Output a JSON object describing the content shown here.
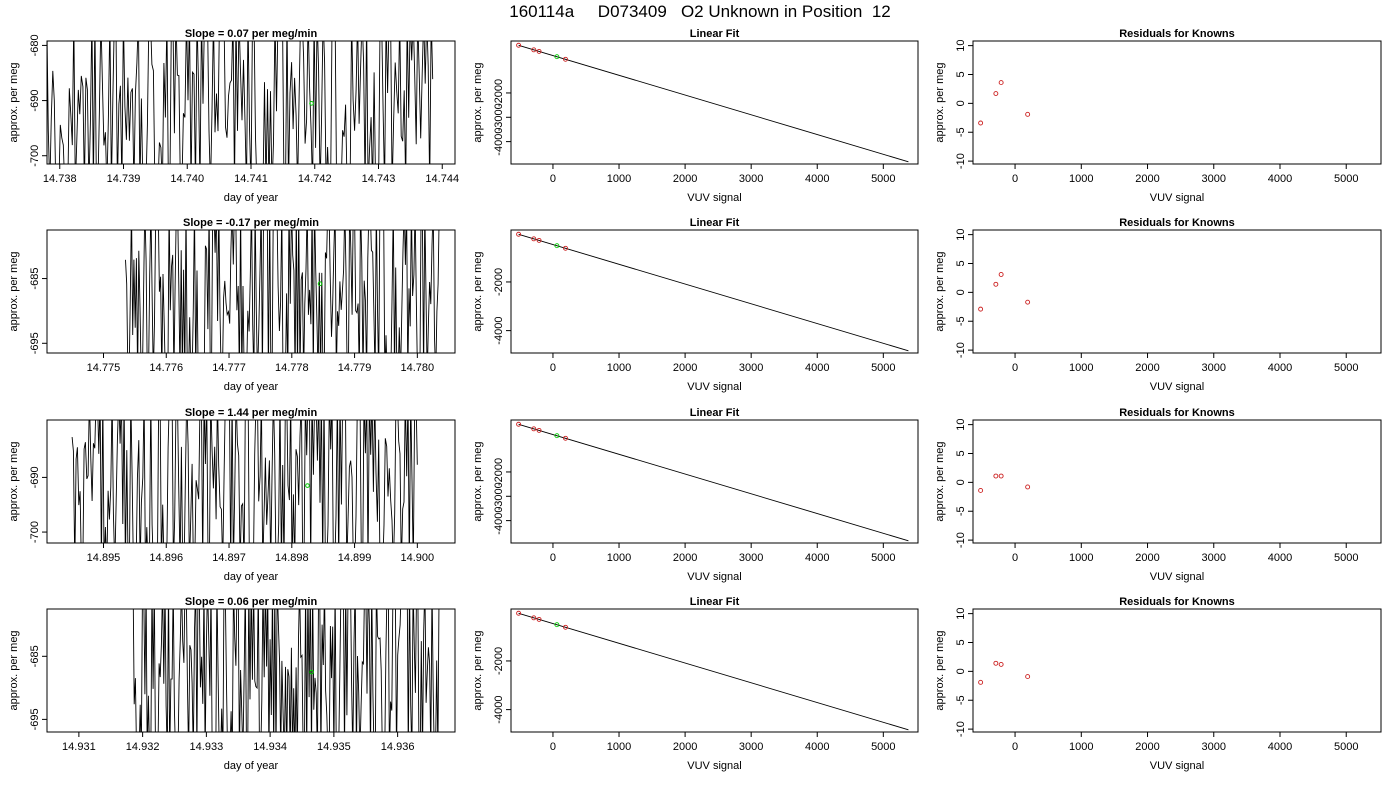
{
  "figure": {
    "title": "160114a     D073409   O2 Unknown in Position  12"
  },
  "chart_data": [
    {
      "type": "line",
      "title": "Slope =  0.07  per meg/min",
      "xlabel": "day of year",
      "ylabel": "approx. per meg",
      "xlim": [
        14.7378,
        14.7442
      ],
      "ylim": [
        -701.5,
        -679.2
      ],
      "xticks": [
        "14.738",
        "14.739",
        "14.740",
        "14.741",
        "14.742",
        "14.743",
        "14.744"
      ],
      "yticks": [
        "-680",
        "-690",
        "-700"
      ],
      "series": [
        {
          "x_start": 14.73775,
          "x_end": 14.74385,
          "seed": 11
        }
      ],
      "highlight": {
        "x": 14.74195,
        "y": -690.5
      }
    },
    {
      "type": "scatter",
      "title": "Linear Fit",
      "xlabel": "VUV signal",
      "ylabel": "approx. per meg",
      "xlim": [
        -635,
        5525
      ],
      "ylim": [
        -4920,
        135
      ],
      "xticks": [
        "0",
        "1000",
        "2000",
        "3000",
        "4000",
        "5000"
      ],
      "yticks": [
        "-2000",
        "-3000",
        "-4000"
      ],
      "fit_line": {
        "x": [
          -520,
          5380
        ],
        "y": [
          -40,
          -4830
        ]
      },
      "knowns": {
        "x": [
          -520,
          -290,
          -210,
          190
        ],
        "y": [
          -40,
          -228,
          -293,
          -616
        ]
      },
      "unknown": {
        "x": 60,
        "y": -510
      }
    },
    {
      "type": "scatter",
      "title": "Residuals for Knowns",
      "xlabel": "VUV signal",
      "ylabel": "approx. per meg",
      "xlim": [
        -635,
        5525
      ],
      "ylim": [
        -10.5,
        10.8
      ],
      "xticks": [
        "0",
        "1000",
        "2000",
        "3000",
        "4000",
        "5000"
      ],
      "yticks": [
        "-10",
        "-5",
        "0",
        "5",
        "10"
      ],
      "points": {
        "x": [
          -520,
          -290,
          -210,
          190
        ],
        "y": [
          -3.4,
          1.7,
          3.6,
          -1.9
        ]
      }
    },
    {
      "type": "line",
      "title": "Slope =  -0.17  per meg/min",
      "xlabel": "day of year",
      "ylabel": "approx. per meg",
      "xlim": [
        14.7741,
        14.7806
      ],
      "ylim": [
        -696.5,
        -677.5
      ],
      "xticks": [
        "14.775",
        "14.776",
        "14.777",
        "14.778",
        "14.779",
        "14.780"
      ],
      "yticks": [
        "-685",
        "-695"
      ],
      "series": [
        {
          "x_start": 14.77535,
          "x_end": 14.78035,
          "seed": 23
        }
      ],
      "highlight": {
        "x": 14.77845,
        "y": -685.8
      }
    },
    {
      "type": "scatter",
      "title": "Linear Fit",
      "xlabel": "VUV signal",
      "ylabel": "approx. per meg",
      "xlim": [
        -635,
        5525
      ],
      "ylim": [
        -4920,
        135
      ],
      "xticks": [
        "0",
        "1000",
        "2000",
        "3000",
        "4000",
        "5000"
      ],
      "yticks": [
        "-2000",
        "-4000"
      ],
      "fit_line": {
        "x": [
          -520,
          5380
        ],
        "y": [
          -40,
          -4830
        ]
      },
      "knowns": {
        "x": [
          -520,
          -290,
          -210,
          190
        ],
        "y": [
          -40,
          -228,
          -293,
          -616
        ]
      },
      "unknown": {
        "x": 60,
        "y": -510
      }
    },
    {
      "type": "scatter",
      "title": "Residuals for Knowns",
      "xlabel": "VUV signal",
      "ylabel": "approx. per meg",
      "xlim": [
        -635,
        5525
      ],
      "ylim": [
        -10.5,
        10.8
      ],
      "xticks": [
        "0",
        "1000",
        "2000",
        "3000",
        "4000",
        "5000"
      ],
      "yticks": [
        "-10",
        "-5",
        "0",
        "5",
        "10"
      ],
      "points": {
        "x": [
          -520,
          -290,
          -210,
          190
        ],
        "y": [
          -2.9,
          1.4,
          3.1,
          -1.7
        ]
      }
    },
    {
      "type": "line",
      "title": "Slope =  1.44  per meg/min",
      "xlabel": "day of year",
      "ylabel": "approx. per meg",
      "xlim": [
        14.8941,
        14.9006
      ],
      "ylim": [
        -702,
        -679.5
      ],
      "xticks": [
        "14.895",
        "14.896",
        "14.897",
        "14.898",
        "14.899",
        "14.900"
      ],
      "yticks": [
        "-690",
        "-700"
      ],
      "series": [
        {
          "x_start": 14.8945,
          "x_end": 14.9,
          "seed": 37
        }
      ],
      "highlight": {
        "x": 14.89825,
        "y": -691.5
      }
    },
    {
      "type": "scatter",
      "title": "Linear Fit",
      "xlabel": "VUV signal",
      "ylabel": "approx. per meg",
      "xlim": [
        -635,
        5525
      ],
      "ylim": [
        -4920,
        135
      ],
      "xticks": [
        "0",
        "1000",
        "2000",
        "3000",
        "4000",
        "5000"
      ],
      "yticks": [
        "-2000",
        "-3000",
        "-4000"
      ],
      "fit_line": {
        "x": [
          -520,
          5380
        ],
        "y": [
          -40,
          -4830
        ]
      },
      "knowns": {
        "x": [
          -520,
          -290,
          -210,
          190
        ],
        "y": [
          -40,
          -228,
          -293,
          -616
        ]
      },
      "unknown": {
        "x": 60,
        "y": -510
      }
    },
    {
      "type": "scatter",
      "title": "Residuals for Knowns",
      "xlabel": "VUV signal",
      "ylabel": "approx. per meg",
      "xlim": [
        -635,
        5525
      ],
      "ylim": [
        -10.5,
        10.8
      ],
      "xticks": [
        "0",
        "1000",
        "2000",
        "3000",
        "4000",
        "5000"
      ],
      "yticks": [
        "-10",
        "-5",
        "0",
        "5",
        "10"
      ],
      "points": {
        "x": [
          -520,
          -290,
          -210,
          190
        ],
        "y": [
          -1.4,
          1.1,
          1.1,
          -0.8
        ]
      }
    },
    {
      "type": "line",
      "title": "Slope =  0.06  per meg/min",
      "xlabel": "day of year",
      "ylabel": "approx. per meg",
      "xlim": [
        14.9305,
        14.9369
      ],
      "ylim": [
        -697,
        -677.5
      ],
      "xticks": [
        "14.931",
        "14.932",
        "14.933",
        "14.934",
        "14.935",
        "14.936"
      ],
      "yticks": [
        "-685",
        "-695"
      ],
      "series": [
        {
          "x_start": 14.93185,
          "x_end": 14.93665,
          "seed": 53
        }
      ],
      "highlight": {
        "x": 14.93465,
        "y": -687.5
      }
    },
    {
      "type": "scatter",
      "title": "Linear Fit",
      "xlabel": "VUV signal",
      "ylabel": "approx. per meg",
      "xlim": [
        -635,
        5525
      ],
      "ylim": [
        -4920,
        135
      ],
      "xticks": [
        "0",
        "1000",
        "2000",
        "3000",
        "4000",
        "5000"
      ],
      "yticks": [
        "-2000",
        "-4000"
      ],
      "fit_line": {
        "x": [
          -520,
          5380
        ],
        "y": [
          -40,
          -4830
        ]
      },
      "knowns": {
        "x": [
          -520,
          -290,
          -210,
          190
        ],
        "y": [
          -40,
          -228,
          -293,
          -616
        ]
      },
      "unknown": {
        "x": 60,
        "y": -510
      }
    },
    {
      "type": "scatter",
      "title": "Residuals for Knowns",
      "xlabel": "VUV signal",
      "ylabel": "approx. per meg",
      "xlim": [
        -635,
        5525
      ],
      "ylim": [
        -10.5,
        10.8
      ],
      "xticks": [
        "0",
        "1000",
        "2000",
        "3000",
        "4000",
        "5000"
      ],
      "yticks": [
        "-10",
        "-5",
        "0",
        "5",
        "10"
      ],
      "points": {
        "x": [
          -520,
          -290,
          -210,
          190
        ],
        "y": [
          -1.9,
          1.4,
          1.2,
          -0.9
        ]
      }
    }
  ]
}
